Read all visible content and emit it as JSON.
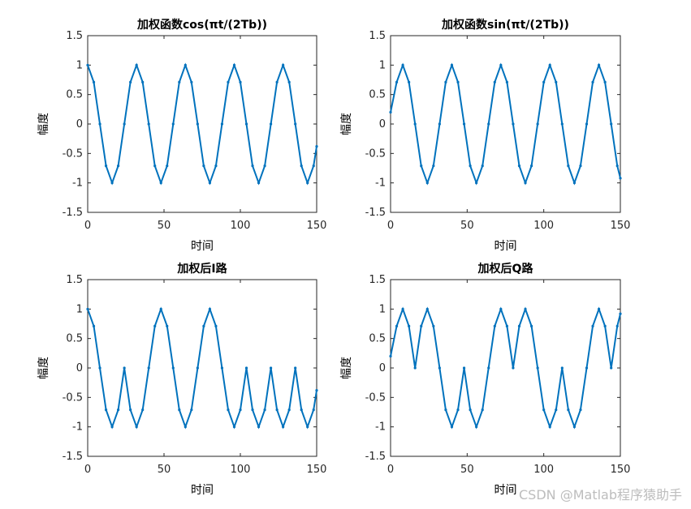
{
  "colors": {
    "series": "#0072BD",
    "axis": "#262626"
  },
  "watermark": "CSDN @Matlab程序猿助手",
  "chart_data": [
    {
      "type": "line",
      "title": "加权函数cos(πt/(2Tb))",
      "xlabel": "时间",
      "ylabel": "幅度",
      "xlim": [
        0,
        150
      ],
      "ylim": [
        -1.5,
        1.5
      ],
      "xticks": [
        "0",
        "50",
        "100",
        "150"
      ],
      "yticks": [
        "1.5",
        "1",
        "0.5",
        "0",
        "-0.5",
        "-1",
        "-1.5"
      ],
      "series": [
        {
          "x": [
            0,
            4,
            8,
            12,
            16,
            20,
            24,
            28,
            32,
            36,
            40,
            44,
            48,
            52,
            56,
            60,
            64,
            68,
            72,
            76,
            80,
            84,
            88,
            92,
            96,
            100,
            104,
            108,
            112,
            116,
            120,
            124,
            128,
            132,
            136,
            140,
            144,
            148,
            150
          ],
          "y": [
            1,
            0.71,
            0,
            -0.71,
            -1,
            -0.71,
            0,
            0.71,
            1,
            0.71,
            0,
            -0.71,
            -1,
            -0.71,
            0,
            0.71,
            1,
            0.71,
            0,
            -0.71,
            -1,
            -0.71,
            0,
            0.71,
            1,
            0.71,
            0,
            -0.71,
            -1,
            -0.71,
            0,
            0.71,
            1,
            0.71,
            0,
            -0.71,
            -1,
            -0.71,
            -0.38
          ]
        }
      ]
    },
    {
      "type": "line",
      "title": "加权函数sin(πt/(2Tb))",
      "xlabel": "时间",
      "ylabel": "幅度",
      "xlim": [
        0,
        150
      ],
      "ylim": [
        -1.5,
        1.5
      ],
      "xticks": [
        "0",
        "50",
        "100",
        "150"
      ],
      "yticks": [
        "1.5",
        "1",
        "0.5",
        "0",
        "-0.5",
        "-1",
        "-1.5"
      ],
      "series": [
        {
          "x": [
            0,
            4,
            8,
            12,
            16,
            20,
            24,
            28,
            32,
            36,
            40,
            44,
            48,
            52,
            56,
            60,
            64,
            68,
            72,
            76,
            80,
            84,
            88,
            92,
            96,
            100,
            104,
            108,
            112,
            116,
            120,
            124,
            128,
            132,
            136,
            140,
            144,
            148,
            150
          ],
          "y": [
            0.2,
            0.71,
            1,
            0.71,
            0,
            -0.71,
            -1,
            -0.71,
            0,
            0.71,
            1,
            0.71,
            0,
            -0.71,
            -1,
            -0.71,
            0,
            0.71,
            1,
            0.71,
            0,
            -0.71,
            -1,
            -0.71,
            0,
            0.71,
            1,
            0.71,
            0,
            -0.71,
            -1,
            -0.71,
            0,
            0.71,
            1,
            0.71,
            0,
            -0.71,
            -0.92
          ]
        }
      ]
    },
    {
      "type": "line",
      "title": "加权后I路",
      "xlabel": "时间",
      "ylabel": "幅度",
      "xlim": [
        0,
        150
      ],
      "ylim": [
        -1.5,
        1.5
      ],
      "xticks": [
        "0",
        "50",
        "100",
        "150"
      ],
      "yticks": [
        "1.5",
        "1",
        "0.5",
        "0",
        "-0.5",
        "-1",
        "-1.5"
      ],
      "series": [
        {
          "x": [
            0,
            4,
            8,
            12,
            16,
            20,
            24,
            28,
            32,
            36,
            40,
            44,
            48,
            52,
            56,
            60,
            64,
            68,
            72,
            76,
            80,
            84,
            88,
            92,
            96,
            100,
            104,
            108,
            112,
            116,
            120,
            124,
            128,
            132,
            136,
            140,
            144,
            148,
            150
          ],
          "y": [
            1,
            0.71,
            0,
            -0.71,
            -1,
            -0.71,
            0,
            -0.71,
            -1,
            -0.71,
            0,
            0.71,
            1,
            0.71,
            0,
            -0.71,
            -1,
            -0.71,
            0,
            0.71,
            1,
            0.71,
            0,
            -0.71,
            -1,
            -0.71,
            0,
            -0.71,
            -1,
            -0.71,
            0,
            -0.71,
            -1,
            -0.71,
            0,
            -0.71,
            -1,
            -0.71,
            -0.38
          ]
        }
      ]
    },
    {
      "type": "line",
      "title": "加权后Q路",
      "xlabel": "时间",
      "ylabel": "幅度",
      "xlim": [
        0,
        150
      ],
      "ylim": [
        -1.5,
        1.5
      ],
      "xticks": [
        "0",
        "50",
        "100",
        "150"
      ],
      "yticks": [
        "1.5",
        "1",
        "0.5",
        "0",
        "-0.5",
        "-1",
        "-1.5"
      ],
      "series": [
        {
          "x": [
            0,
            4,
            8,
            12,
            16,
            20,
            24,
            28,
            32,
            36,
            40,
            44,
            48,
            52,
            56,
            60,
            64,
            68,
            72,
            76,
            80,
            84,
            88,
            92,
            96,
            100,
            104,
            108,
            112,
            116,
            120,
            124,
            128,
            132,
            136,
            140,
            144,
            148,
            150
          ],
          "y": [
            0.2,
            0.71,
            1,
            0.71,
            0,
            0.71,
            1,
            0.71,
            0,
            -0.71,
            -1,
            -0.71,
            0,
            -0.71,
            -1,
            -0.71,
            0,
            0.71,
            1,
            0.71,
            0,
            0.71,
            1,
            0.71,
            0,
            -0.71,
            -1,
            -0.71,
            0,
            -0.71,
            -1,
            -0.71,
            0,
            0.71,
            1,
            0.71,
            0,
            0.71,
            0.92
          ]
        }
      ]
    }
  ]
}
